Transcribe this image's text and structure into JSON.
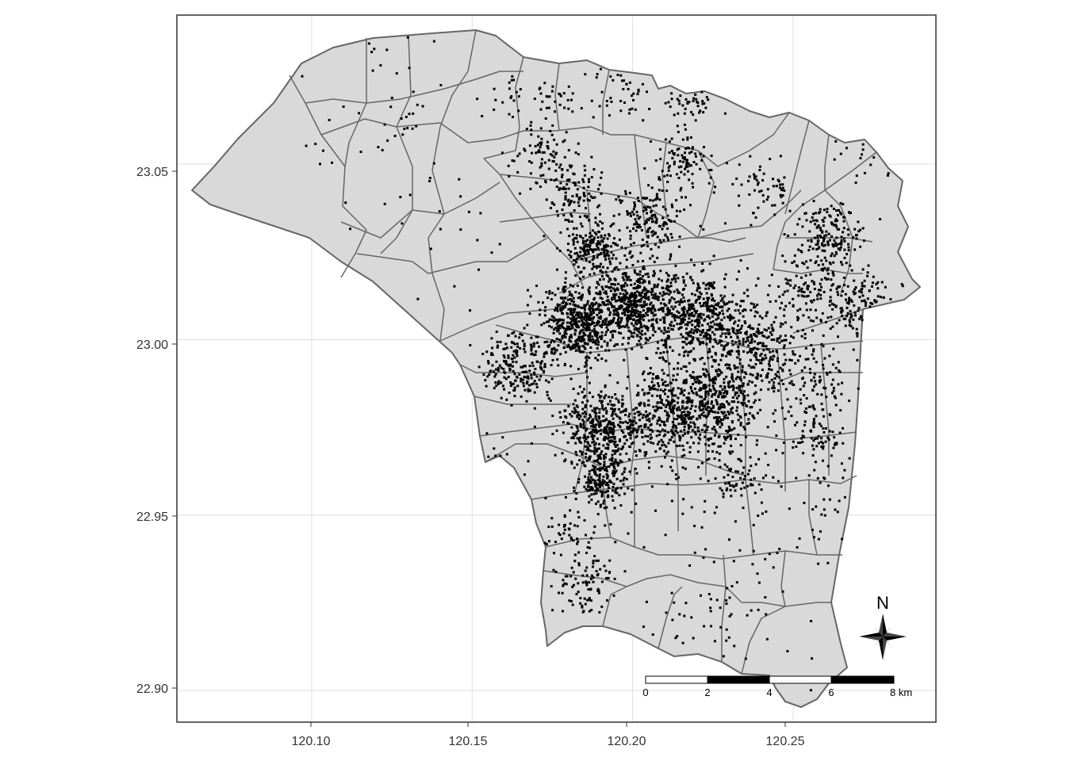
{
  "map": {
    "x_ticks": [
      "120.10",
      "120.15",
      "120.20",
      "120.25"
    ],
    "y_ticks": [
      "23.05",
      "23.00",
      "22.95",
      "22.90"
    ],
    "x_range": [
      120.058,
      120.2945
    ],
    "y_range": [
      22.891,
      23.0925
    ],
    "grid": true,
    "district_fill": "#d9d9d9",
    "district_stroke": "#666666",
    "point_color": "#000000"
  },
  "scalebar": {
    "labels": [
      "0",
      "2",
      "4",
      "6",
      "8 km"
    ]
  },
  "north_arrow": {
    "label": "N"
  },
  "point_clusters": [
    {
      "lon": 120.183,
      "lat": 23.005,
      "sd": 0.006,
      "n": 500
    },
    {
      "lon": 120.201,
      "lat": 23.01,
      "sd": 0.007,
      "n": 600
    },
    {
      "lon": 120.222,
      "lat": 23.006,
      "sd": 0.007,
      "n": 420
    },
    {
      "lon": 120.24,
      "lat": 22.998,
      "sd": 0.007,
      "n": 260
    },
    {
      "lon": 120.226,
      "lat": 22.982,
      "sd": 0.008,
      "n": 480
    },
    {
      "lon": 120.21,
      "lat": 22.978,
      "sd": 0.007,
      "n": 320
    },
    {
      "lon": 120.19,
      "lat": 22.975,
      "sd": 0.006,
      "n": 380
    },
    {
      "lon": 120.19,
      "lat": 22.96,
      "sd": 0.004,
      "n": 180
    },
    {
      "lon": 120.165,
      "lat": 22.992,
      "sd": 0.006,
      "n": 220
    },
    {
      "lon": 120.187,
      "lat": 23.026,
      "sd": 0.004,
      "n": 170
    },
    {
      "lon": 120.206,
      "lat": 23.035,
      "sd": 0.006,
      "n": 170
    },
    {
      "lon": 120.182,
      "lat": 23.042,
      "sd": 0.005,
      "n": 110
    },
    {
      "lon": 120.172,
      "lat": 23.052,
      "sd": 0.005,
      "n": 80
    },
    {
      "lon": 120.215,
      "lat": 23.051,
      "sd": 0.005,
      "n": 90
    },
    {
      "lon": 120.24,
      "lat": 23.042,
      "sd": 0.005,
      "n": 60
    },
    {
      "lon": 120.262,
      "lat": 23.03,
      "sd": 0.005,
      "n": 160
    },
    {
      "lon": 120.27,
      "lat": 23.01,
      "sd": 0.006,
      "n": 150
    },
    {
      "lon": 120.255,
      "lat": 23.015,
      "sd": 0.006,
      "n": 120
    },
    {
      "lon": 120.256,
      "lat": 22.988,
      "sd": 0.006,
      "n": 90
    },
    {
      "lon": 120.257,
      "lat": 22.973,
      "sd": 0.004,
      "n": 70
    },
    {
      "lon": 120.234,
      "lat": 22.96,
      "sd": 0.005,
      "n": 70
    },
    {
      "lon": 120.185,
      "lat": 22.93,
      "sd": 0.005,
      "n": 90
    },
    {
      "lon": 120.182,
      "lat": 22.945,
      "sd": 0.004,
      "n": 50
    },
    {
      "lon": 120.218,
      "lat": 23.069,
      "sd": 0.004,
      "n": 50
    },
    {
      "lon": 120.197,
      "lat": 23.071,
      "sd": 0.004,
      "n": 40
    },
    {
      "lon": 120.178,
      "lat": 23.069,
      "sd": 0.004,
      "n": 30
    },
    {
      "lon": 120.16,
      "lat": 23.07,
      "sd": 0.004,
      "n": 20
    },
    {
      "lon": 120.128,
      "lat": 23.063,
      "sd": 0.004,
      "n": 15
    },
    {
      "lon": 120.22,
      "lat": 22.92,
      "sd": 0.01,
      "n": 40
    },
    {
      "lon": 120.245,
      "lat": 22.93,
      "sd": 0.01,
      "n": 40
    },
    {
      "lon": 120.265,
      "lat": 22.955,
      "sd": 0.008,
      "n": 45
    },
    {
      "lon": 120.15,
      "lat": 23.03,
      "sd": 0.015,
      "n": 15
    },
    {
      "lon": 120.13,
      "lat": 23.045,
      "sd": 0.012,
      "n": 15
    },
    {
      "lon": 120.12,
      "lat": 23.075,
      "sd": 0.012,
      "n": 15
    },
    {
      "lon": 120.1,
      "lat": 23.055,
      "sd": 0.006,
      "n": 6
    },
    {
      "lon": 120.21,
      "lat": 22.955,
      "sd": 0.012,
      "n": 40
    },
    {
      "lon": 120.158,
      "lat": 22.965,
      "sd": 0.006,
      "n": 20
    },
    {
      "lon": 120.272,
      "lat": 23.052,
      "sd": 0.006,
      "n": 25
    }
  ]
}
